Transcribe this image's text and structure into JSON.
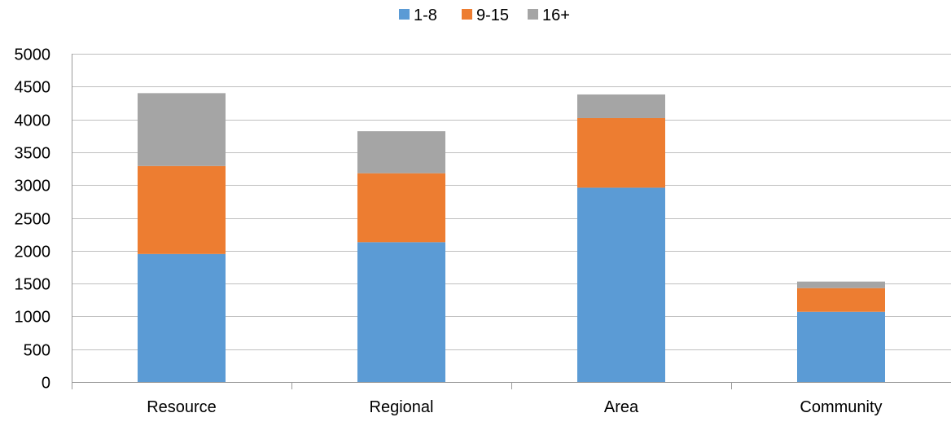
{
  "chart_data": {
    "type": "bar",
    "stacked": true,
    "title": "",
    "xlabel": "",
    "ylabel": "",
    "categories": [
      "Resource",
      "Regional",
      "Area",
      "Community"
    ],
    "series": [
      {
        "name": "1-8",
        "color": "#5b9bd5",
        "values": [
          1950,
          2130,
          2960,
          1070
        ]
      },
      {
        "name": "9-15",
        "color": "#ed7d31",
        "values": [
          1340,
          1050,
          1060,
          360
        ]
      },
      {
        "name": "16+",
        "color": "#a5a5a5",
        "values": [
          1110,
          640,
          360,
          100
        ]
      }
    ],
    "ylim": [
      0,
      5000
    ],
    "yticks": [
      0,
      500,
      1000,
      1500,
      2000,
      2500,
      3000,
      3500,
      4000,
      4500,
      5000
    ],
    "grid": true,
    "legend_position": "top-center"
  }
}
